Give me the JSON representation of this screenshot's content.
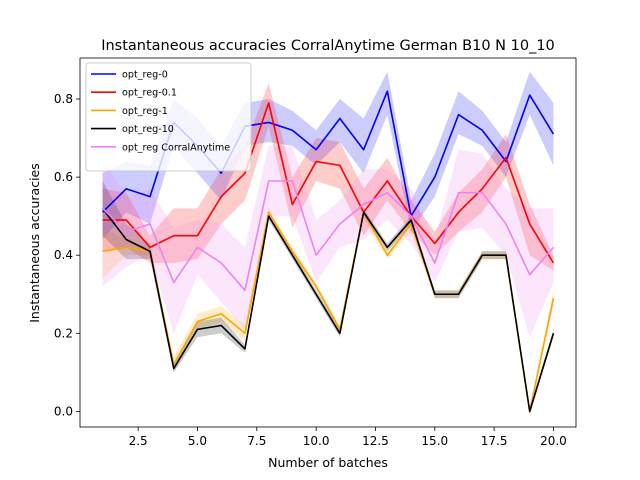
{
  "chart_data": {
    "type": "line",
    "title": "Instantaneous accuracies CorralAnytime German B10 N 10_10",
    "xlabel": "Number of batches",
    "ylabel": "Instantaneous accuracies",
    "xlim": [
      0.05,
      20.95
    ],
    "ylim": [
      -0.04,
      0.905
    ],
    "xticks": [
      2.5,
      5.0,
      7.5,
      10.0,
      12.5,
      15.0,
      17.5,
      20.0
    ],
    "xtick_labels": [
      "2.5",
      "5.0",
      "7.5",
      "10.0",
      "12.5",
      "15.0",
      "17.5",
      "20.0"
    ],
    "yticks": [
      0.0,
      0.2,
      0.4,
      0.6,
      0.8
    ],
    "ytick_labels": [
      "0.0",
      "0.2",
      "0.4",
      "0.6",
      "0.8"
    ],
    "grid": false,
    "legend_position": "top-left",
    "x": [
      1,
      2,
      3,
      4,
      5,
      6,
      7,
      8,
      9,
      10,
      11,
      12,
      13,
      14,
      15,
      16,
      17,
      18,
      19,
      20
    ],
    "series": [
      {
        "name": "opt_reg-0",
        "color": "#0000ff",
        "values": [
          0.51,
          0.57,
          0.55,
          0.74,
          0.68,
          0.61,
          0.73,
          0.74,
          0.72,
          0.67,
          0.75,
          0.67,
          0.82,
          0.5,
          0.6,
          0.76,
          0.72,
          0.64,
          0.81,
          0.71
        ],
        "lower": [
          0.44,
          0.51,
          0.48,
          0.68,
          0.61,
          0.54,
          0.68,
          0.69,
          0.68,
          0.63,
          0.69,
          0.61,
          0.76,
          0.46,
          0.55,
          0.71,
          0.68,
          0.6,
          0.76,
          0.63
        ],
        "upper": [
          0.61,
          0.64,
          0.63,
          0.8,
          0.75,
          0.68,
          0.79,
          0.8,
          0.77,
          0.72,
          0.8,
          0.75,
          0.87,
          0.54,
          0.66,
          0.82,
          0.77,
          0.69,
          0.87,
          0.79
        ]
      },
      {
        "name": "opt_reg-0.1",
        "color": "#ff0000",
        "values": [
          0.49,
          0.49,
          0.42,
          0.45,
          0.45,
          0.55,
          0.61,
          0.79,
          0.53,
          0.64,
          0.63,
          0.51,
          0.59,
          0.5,
          0.43,
          0.51,
          0.57,
          0.65,
          0.48,
          0.38
        ],
        "lower": [
          0.41,
          0.42,
          0.38,
          0.38,
          0.39,
          0.48,
          0.54,
          0.73,
          0.47,
          0.59,
          0.57,
          0.45,
          0.54,
          0.46,
          0.4,
          0.46,
          0.51,
          0.6,
          0.4,
          0.36
        ],
        "upper": [
          0.57,
          0.56,
          0.45,
          0.52,
          0.52,
          0.62,
          0.68,
          0.84,
          0.6,
          0.7,
          0.69,
          0.57,
          0.65,
          0.54,
          0.46,
          0.56,
          0.62,
          0.71,
          0.53,
          0.4
        ]
      },
      {
        "name": "opt_reg-1",
        "color": "#ffa500",
        "values": [
          0.41,
          0.42,
          0.41,
          0.12,
          0.23,
          0.25,
          0.2,
          0.51,
          0.41,
          0.32,
          0.21,
          0.51,
          0.4,
          0.48,
          0.3,
          0.3,
          0.4,
          0.4,
          0.0,
          0.29
        ],
        "lower": [
          0.34,
          0.4,
          0.4,
          0.1,
          0.21,
          0.23,
          0.18,
          0.5,
          0.4,
          0.31,
          0.2,
          0.49,
          0.39,
          0.46,
          0.29,
          0.29,
          0.39,
          0.39,
          -0.01,
          0.27
        ],
        "upper": [
          0.47,
          0.44,
          0.42,
          0.14,
          0.25,
          0.27,
          0.22,
          0.52,
          0.42,
          0.33,
          0.22,
          0.52,
          0.41,
          0.5,
          0.31,
          0.31,
          0.41,
          0.41,
          0.01,
          0.31
        ]
      },
      {
        "name": "opt_reg-10",
        "color": "#000000",
        "values": [
          0.52,
          0.44,
          0.41,
          0.11,
          0.21,
          0.22,
          0.16,
          0.5,
          0.4,
          0.3,
          0.2,
          0.51,
          0.42,
          0.49,
          0.3,
          0.3,
          0.4,
          0.4,
          0.0,
          0.2
        ],
        "lower": [
          0.45,
          0.39,
          0.39,
          0.1,
          0.19,
          0.2,
          0.15,
          0.49,
          0.39,
          0.29,
          0.19,
          0.5,
          0.41,
          0.48,
          0.29,
          0.29,
          0.39,
          0.39,
          -0.01,
          0.19
        ],
        "upper": [
          0.59,
          0.48,
          0.43,
          0.12,
          0.23,
          0.24,
          0.17,
          0.51,
          0.41,
          0.31,
          0.21,
          0.52,
          0.43,
          0.5,
          0.31,
          0.31,
          0.41,
          0.41,
          0.01,
          0.21
        ]
      },
      {
        "name": "opt_reg CorralAnytime",
        "color": "#ee82ee",
        "values": [
          0.52,
          0.46,
          0.48,
          0.33,
          0.42,
          0.38,
          0.31,
          0.59,
          0.59,
          0.4,
          0.48,
          0.53,
          0.56,
          0.5,
          0.38,
          0.56,
          0.56,
          0.48,
          0.35,
          0.42
        ],
        "lower": [
          0.32,
          0.37,
          0.4,
          0.2,
          0.35,
          0.28,
          0.21,
          0.5,
          0.5,
          0.33,
          0.42,
          0.44,
          0.49,
          0.43,
          0.33,
          0.46,
          0.47,
          0.4,
          0.19,
          0.33
        ],
        "upper": [
          0.65,
          0.55,
          0.57,
          0.47,
          0.49,
          0.48,
          0.42,
          0.68,
          0.68,
          0.49,
          0.54,
          0.62,
          0.62,
          0.57,
          0.44,
          0.67,
          0.66,
          0.57,
          0.52,
          0.52
        ]
      }
    ]
  }
}
